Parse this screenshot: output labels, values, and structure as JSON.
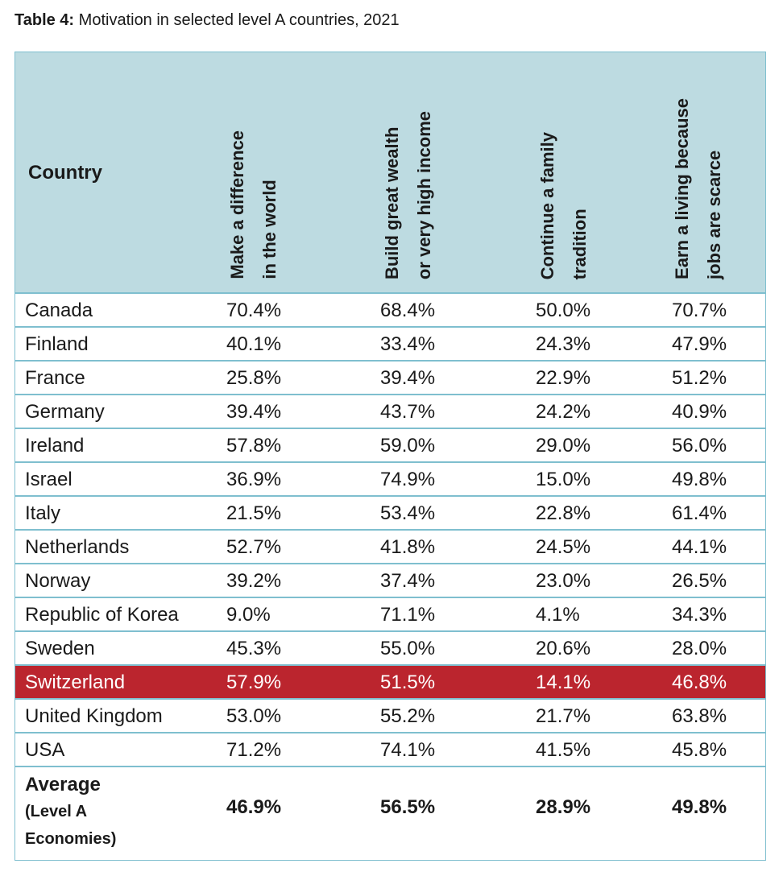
{
  "title": {
    "label": "Table 4:",
    "text": "Motivation in selected level A countries, 2021"
  },
  "header": {
    "country": "Country",
    "cols": [
      "Make a difference\nin the world",
      "Build great wealth\nor very high income",
      "Continue a family\ntradition",
      "Earn a living because\njobs are scarce"
    ]
  },
  "rows": [
    {
      "country": "Canada",
      "v": [
        "70.4%",
        "68.4%",
        "50.0%",
        "70.7%"
      ]
    },
    {
      "country": "Finland",
      "v": [
        "40.1%",
        "33.4%",
        "24.3%",
        "47.9%"
      ]
    },
    {
      "country": "France",
      "v": [
        "25.8%",
        "39.4%",
        "22.9%",
        "51.2%"
      ]
    },
    {
      "country": "Germany",
      "v": [
        "39.4%",
        "43.7%",
        "24.2%",
        "40.9%"
      ]
    },
    {
      "country": "Ireland",
      "v": [
        "57.8%",
        "59.0%",
        "29.0%",
        "56.0%"
      ]
    },
    {
      "country": "Israel",
      "v": [
        "36.9%",
        "74.9%",
        "15.0%",
        "49.8%"
      ]
    },
    {
      "country": "Italy",
      "v": [
        "21.5%",
        "53.4%",
        "22.8%",
        "61.4%"
      ]
    },
    {
      "country": "Netherlands",
      "v": [
        "52.7%",
        "41.8%",
        "24.5%",
        "44.1%"
      ]
    },
    {
      "country": "Norway",
      "v": [
        "39.2%",
        "37.4%",
        "23.0%",
        "26.5%"
      ]
    },
    {
      "country": "Republic of Korea",
      "v": [
        "9.0%",
        "71.1%",
        "4.1%",
        "34.3%"
      ]
    },
    {
      "country": "Sweden",
      "v": [
        "45.3%",
        "55.0%",
        "20.6%",
        "28.0%"
      ]
    },
    {
      "country": "Switzerland",
      "v": [
        "57.9%",
        "51.5%",
        "14.1%",
        "46.8%"
      ],
      "highlight": true
    },
    {
      "country": "United Kingdom",
      "v": [
        "53.0%",
        "55.2%",
        "21.7%",
        "63.8%"
      ]
    },
    {
      "country": "USA",
      "v": [
        "71.2%",
        "74.1%",
        "41.5%",
        "45.8%"
      ]
    }
  ],
  "average": {
    "label": "Average",
    "sub": "(Level A\nEconomies)",
    "v": [
      "46.9%",
      "56.5%",
      "28.9%",
      "49.8%"
    ]
  },
  "colors": {
    "header_bg": "#bddbe1",
    "highlight": "#bb252e",
    "rule": "#7fbfcf"
  }
}
